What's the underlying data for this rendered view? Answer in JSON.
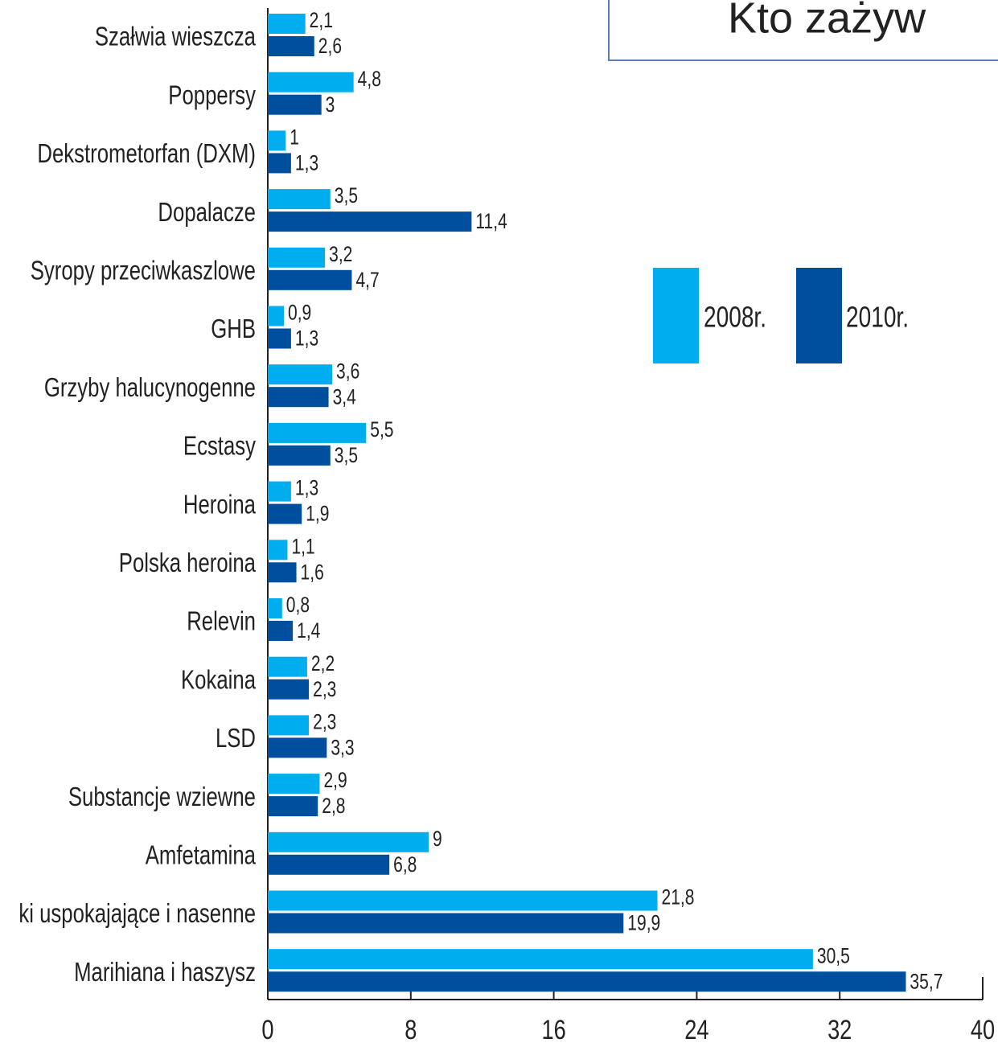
{
  "chart_data": {
    "type": "bar",
    "orientation": "horizontal",
    "title": "Kto zażyw",
    "categories": [
      "Szałwia wieszcza",
      "Poppersy",
      "Dekstrometorfan (DXM)",
      "Dopalacze",
      "Syropy przeciwkaszlowe",
      "GHB",
      "Grzyby halucynogenne",
      "Ecstasy",
      "Heroina",
      "Polska heroina",
      "Relevin",
      "Kokaina",
      "LSD",
      "Substancje wziewne",
      "Amfetamina",
      "ki uspokajające i nasenne",
      "Marihiana i haszysz"
    ],
    "series": [
      {
        "name": "2008r.",
        "color": "#00aeef",
        "values": [
          2.1,
          4.8,
          1,
          3.5,
          3.2,
          0.9,
          3.6,
          5.5,
          1.3,
          1.1,
          0.8,
          2.2,
          2.3,
          2.9,
          9,
          21.8,
          30.5
        ],
        "value_labels": [
          "2,1",
          "4,8",
          "1",
          "3,5",
          "3,2",
          "0,9",
          "3,6",
          "5,5",
          "1,3",
          "1,1",
          "0,8",
          "2,2",
          "2,3",
          "2,9",
          "9",
          "21,8",
          "30,5"
        ]
      },
      {
        "name": "2010r.",
        "color": "#004f9f",
        "values": [
          2.6,
          3,
          1.3,
          11.4,
          4.7,
          1.3,
          3.4,
          3.5,
          1.9,
          1.6,
          1.4,
          2.3,
          3.3,
          2.8,
          6.8,
          19.9,
          35.7
        ],
        "value_labels": [
          "2,6",
          "3",
          "1,3",
          "11,4",
          "4,7",
          "1,3",
          "3,4",
          "3,5",
          "1,9",
          "1,6",
          "1,4",
          "2,3",
          "3,3",
          "2,8",
          "6,8",
          "19,9",
          "35,7"
        ]
      }
    ],
    "xlim": [
      0,
      40
    ],
    "xticks": [
      0,
      8,
      16,
      24,
      32,
      40
    ]
  }
}
